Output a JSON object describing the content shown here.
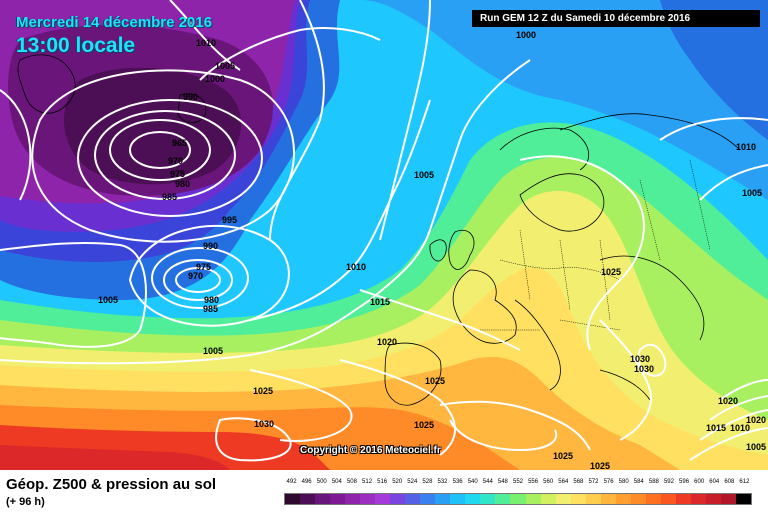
{
  "header": {
    "date": "Mercredi 14 décembre 2016",
    "time": "13:00 locale",
    "run": "Run GEM 12 Z du Samedi 10 décembre 2016"
  },
  "copyright": "Copyright © 2016 Meteociel.fr",
  "footer": {
    "title": "Géop. Z500 & pression au sol",
    "subtitle": "(+ 96 h)"
  },
  "isobar_labels": [
    "1010",
    "1000",
    "1005",
    "990",
    "965",
    "970",
    "975",
    "980",
    "985",
    "995",
    "990",
    "975",
    "970",
    "980",
    "985",
    "1005",
    "1010",
    "1015",
    "1005",
    "1020",
    "1025",
    "1030",
    "1025",
    "1025",
    "1025",
    "1025",
    "1005",
    "1000",
    "1025",
    "1030",
    "1030",
    "1010",
    "1005",
    "1020",
    "1015",
    "1010",
    "1020",
    "1005"
  ],
  "legend": {
    "values": [
      "492",
      "496",
      "500",
      "504",
      "508",
      "512",
      "516",
      "520",
      "524",
      "528",
      "532",
      "536",
      "540",
      "544",
      "548",
      "552",
      "556",
      "560",
      "564",
      "568",
      "572",
      "576",
      "580",
      "584",
      "588",
      "592",
      "596",
      "600",
      "604",
      "608",
      "612"
    ],
    "colors": [
      "#2d0a2e",
      "#4c0f55",
      "#6a157a",
      "#7d1a93",
      "#8e24aa",
      "#9c2fc0",
      "#a43bd8",
      "#7a44e0",
      "#5560e6",
      "#3a80f0",
      "#2aa0f5",
      "#20c0f8",
      "#22d8f0",
      "#30e6c8",
      "#50ee98",
      "#7af070",
      "#a8f060",
      "#d2f060",
      "#f2ef70",
      "#ffe060",
      "#ffcd50",
      "#ffb740",
      "#ff9f30",
      "#ff8a28",
      "#ff7020",
      "#fb5520",
      "#ee3a22",
      "#dc2828",
      "#c81e2a",
      "#b0182a",
      "#000000"
    ]
  }
}
